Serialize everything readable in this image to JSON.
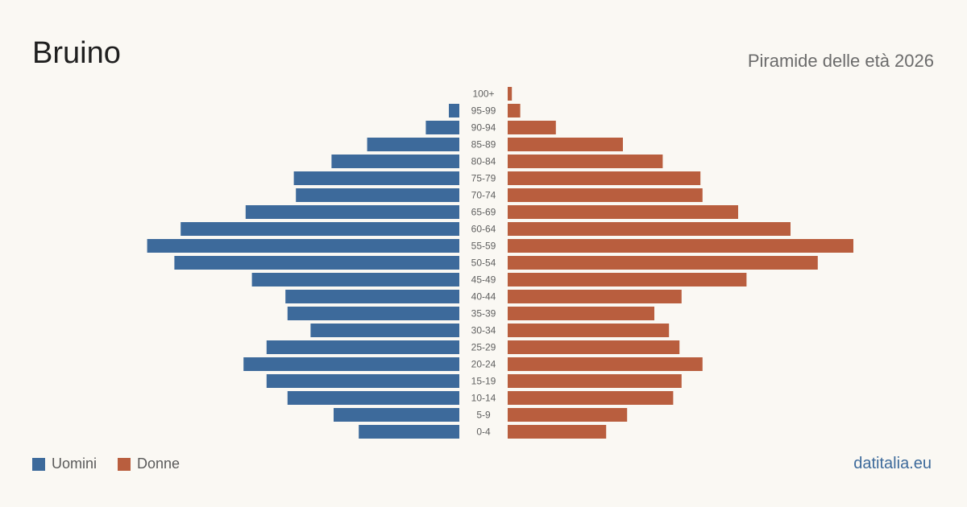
{
  "chart_data": {
    "type": "bar",
    "orientation": "horizontal-population-pyramid",
    "title": "Bruino",
    "subtitle": "Piramide delle età 2026",
    "categories": [
      "100+",
      "95-99",
      "90-94",
      "85-89",
      "80-84",
      "75-79",
      "70-74",
      "65-69",
      "60-64",
      "55-59",
      "50-54",
      "45-49",
      "40-44",
      "35-39",
      "30-34",
      "25-29",
      "20-24",
      "15-19",
      "10-14",
      "5-9",
      "0-4"
    ],
    "series": [
      {
        "name": "Uomini",
        "color": "#3d6a9b",
        "values": [
          0,
          5,
          16,
          44,
          61,
          79,
          78,
          102,
          133,
          149,
          136,
          99,
          83,
          82,
          71,
          92,
          103,
          92,
          82,
          60,
          48
        ]
      },
      {
        "name": "Donne",
        "color": "#b95e3e",
        "values": [
          2,
          6,
          23,
          55,
          74,
          92,
          93,
          110,
          135,
          165,
          148,
          114,
          83,
          70,
          77,
          82,
          93,
          83,
          79,
          57,
          47
        ]
      }
    ],
    "grid": false,
    "legend_position": "bottom-left"
  },
  "source": "datitalia.eu"
}
